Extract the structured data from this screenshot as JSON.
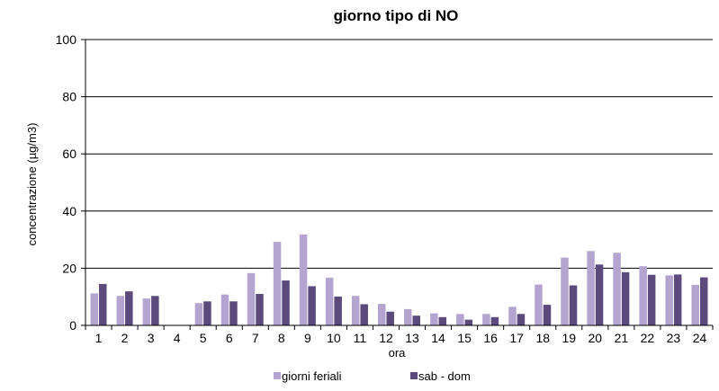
{
  "chart_data": {
    "type": "bar",
    "title": "giorno tipo di NO",
    "xlabel": "ora",
    "ylabel": "concentrazione (µg/m3)",
    "ylim": [
      0,
      100
    ],
    "yticks": [
      0,
      20,
      40,
      60,
      80,
      100
    ],
    "grid": true,
    "legend_position": "bottom",
    "categories": [
      "1",
      "2",
      "3",
      "4",
      "5",
      "6",
      "7",
      "8",
      "9",
      "10",
      "11",
      "12",
      "13",
      "14",
      "15",
      "16",
      "17",
      "18",
      "19",
      "20",
      "21",
      "22",
      "23",
      "24"
    ],
    "series": [
      {
        "name": "giorni feriali",
        "color": "#b3a5d0",
        "values": [
          11.2,
          10.3,
          9.4,
          null,
          7.8,
          10.8,
          18.3,
          29.2,
          31.8,
          16.7,
          10.3,
          7.5,
          5.7,
          4.2,
          4.0,
          4.0,
          6.5,
          14.3,
          23.7,
          26.0,
          25.4,
          20.7,
          17.5,
          14.2
        ]
      },
      {
        "name": "sab - dom",
        "color": "#5c4a7d",
        "values": [
          14.5,
          11.9,
          10.3,
          null,
          8.4,
          8.4,
          11.0,
          15.7,
          13.7,
          10.1,
          7.4,
          4.8,
          3.4,
          2.9,
          2.0,
          2.9,
          4.0,
          7.2,
          14.0,
          21.3,
          18.6,
          17.7,
          17.8,
          16.8
        ]
      }
    ]
  }
}
